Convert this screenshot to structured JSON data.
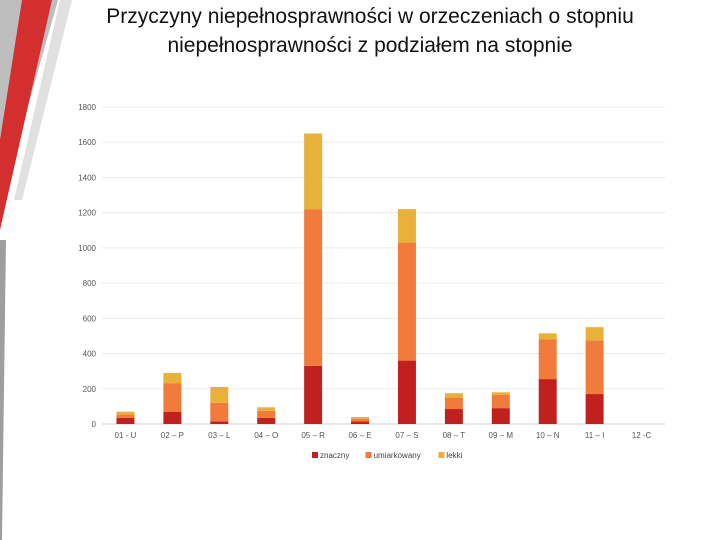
{
  "slide": {
    "title": "Przyczyny niepełnosprawności w orzeczeniach o stopniu niepełnosprawności z podziałem na stopnie",
    "accent_colors": [
      "#c62828",
      "#f07b3a",
      "#e8b13a",
      "#9e9e9e"
    ]
  },
  "chart_data": {
    "type": "bar",
    "stacked": true,
    "title": "",
    "xlabel": "",
    "ylabel": "",
    "ylim": [
      0,
      1800
    ],
    "yticks": [
      0,
      200,
      400,
      600,
      800,
      1000,
      1200,
      1400,
      1600,
      1800
    ],
    "grid": true,
    "legend_position": "bottom",
    "categories": [
      "01 - U",
      "02 – P",
      "03 – L",
      "04 – O",
      "05 – R",
      "06 – E",
      "07 – S",
      "08 – T",
      "09 – M",
      "10 – N",
      "11 – I",
      "12 -C"
    ],
    "series": [
      {
        "name": "znaczny",
        "color": "#c0201e",
        "values": [
          35,
          70,
          15,
          35,
          330,
          15,
          360,
          85,
          90,
          255,
          170,
          0
        ]
      },
      {
        "name": "umiarkowany",
        "color": "#f07b3a",
        "values": [
          20,
          160,
          105,
          40,
          890,
          15,
          670,
          65,
          75,
          225,
          305,
          0
        ]
      },
      {
        "name": "lekki",
        "color": "#e8b13a",
        "values": [
          15,
          60,
          90,
          20,
          430,
          10,
          190,
          25,
          15,
          35,
          75,
          0
        ]
      }
    ]
  }
}
